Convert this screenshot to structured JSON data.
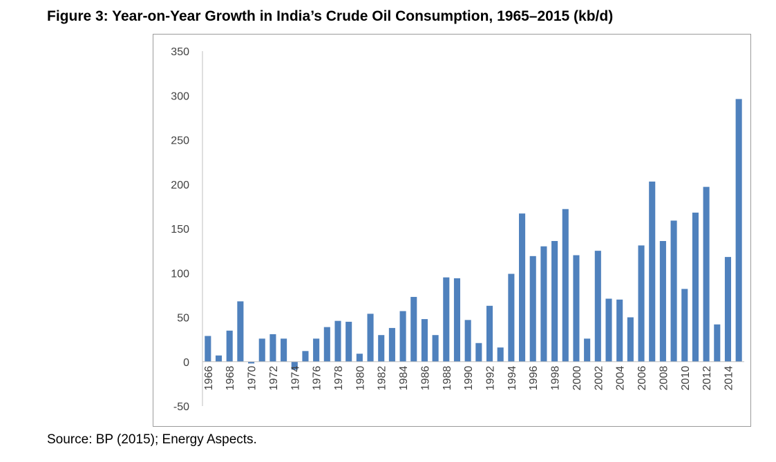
{
  "figure": {
    "title": "Figure 3: Year-on-Year Growth in India’s Crude Oil Consumption, 1965–2015 (kb/d)",
    "source": "Source: BP (2015); Energy Aspects."
  },
  "chart_data": {
    "type": "bar",
    "categories": [
      "1966",
      "1967",
      "1968",
      "1969",
      "1970",
      "1971",
      "1972",
      "1973",
      "1974",
      "1975",
      "1976",
      "1977",
      "1978",
      "1979",
      "1980",
      "1981",
      "1982",
      "1983",
      "1984",
      "1985",
      "1986",
      "1987",
      "1988",
      "1989",
      "1990",
      "1991",
      "1992",
      "1993",
      "1994",
      "1995",
      "1996",
      "1997",
      "1998",
      "1999",
      "2000",
      "2001",
      "2002",
      "2003",
      "2004",
      "2005",
      "2006",
      "2007",
      "2008",
      "2009",
      "2010",
      "2011",
      "2012",
      "2013",
      "2014",
      "2015"
    ],
    "tick_labels": [
      "1966",
      "",
      "1968",
      "",
      "1970",
      "",
      "1972",
      "",
      "1974",
      "",
      "1976",
      "",
      "1978",
      "",
      "1980",
      "",
      "1982",
      "",
      "1984",
      "",
      "1986",
      "",
      "1988",
      "",
      "1990",
      "",
      "1992",
      "",
      "1994",
      "",
      "1996",
      "",
      "1998",
      "",
      "2000",
      "",
      "2002",
      "",
      "2004",
      "",
      "2006",
      "",
      "2008",
      "",
      "2010",
      "",
      "2012",
      "",
      "2014",
      ""
    ],
    "values": [
      29,
      7,
      35,
      68,
      -2,
      26,
      31,
      26,
      -9,
      12,
      26,
      39,
      46,
      45,
      9,
      54,
      30,
      38,
      57,
      73,
      48,
      30,
      95,
      94,
      47,
      21,
      63,
      16,
      99,
      167,
      119,
      130,
      136,
      172,
      120,
      26,
      125,
      71,
      70,
      50,
      131,
      203,
      136,
      159,
      82,
      168,
      197,
      42,
      118,
      296
    ],
    "ylim": [
      -50,
      350
    ],
    "yticks": [
      "-50",
      "0",
      "50",
      "100",
      "150",
      "200",
      "250",
      "300",
      "350"
    ],
    "bar_color": "#4f81bd",
    "axis_color": "#bfbfbf",
    "grid": false,
    "legend": "none",
    "xlabel": "",
    "ylabel": ""
  }
}
